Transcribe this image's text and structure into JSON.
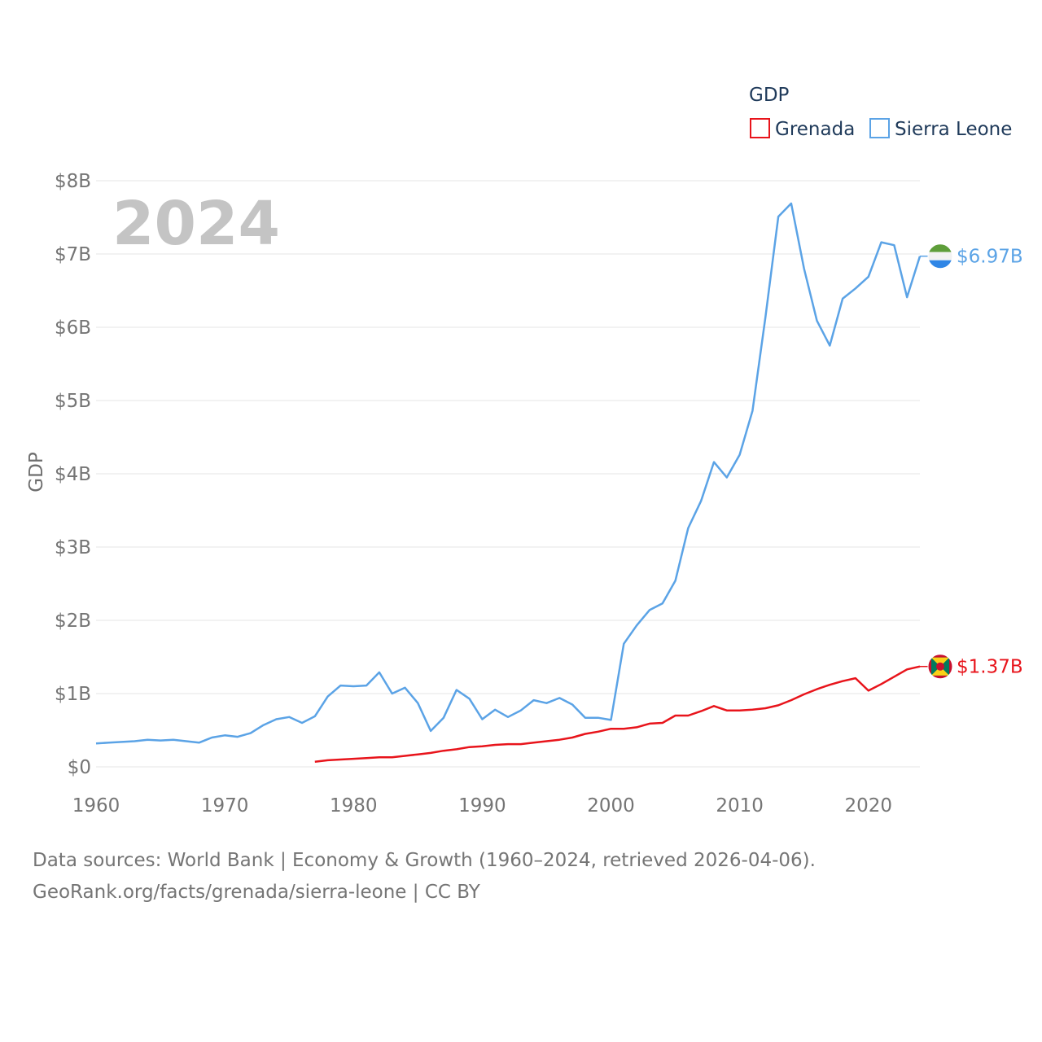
{
  "chart_data": {
    "type": "line",
    "year_label": "2024",
    "ylabel": "GDP",
    "xlim": [
      1960,
      2024
    ],
    "ylim": [
      0,
      8
    ],
    "x_ticks": [
      1960,
      1970,
      1980,
      1990,
      2000,
      2010,
      2020
    ],
    "x_tick_labels": [
      "1960",
      "1970",
      "1980",
      "1990",
      "2000",
      "2010",
      "2020"
    ],
    "y_ticks": [
      0,
      1,
      2,
      3,
      4,
      5,
      6,
      7,
      8
    ],
    "y_tick_labels": [
      "$0",
      "$1B",
      "$2B",
      "$3B",
      "$4B",
      "$5B",
      "$6B",
      "$7B",
      "$8B"
    ],
    "legend": {
      "title": "GDP",
      "placement": "top-right"
    },
    "grid": true,
    "series": [
      {
        "name": "Grenada",
        "color": "#e8141b",
        "end_label": "$1.37B",
        "flag": "grenada-flag",
        "x": [
          1977,
          1978,
          1979,
          1980,
          1981,
          1982,
          1983,
          1984,
          1985,
          1986,
          1987,
          1988,
          1989,
          1990,
          1991,
          1992,
          1993,
          1994,
          1995,
          1996,
          1997,
          1998,
          1999,
          2000,
          2001,
          2002,
          2003,
          2004,
          2005,
          2006,
          2007,
          2008,
          2009,
          2010,
          2011,
          2012,
          2013,
          2014,
          2015,
          2016,
          2017,
          2018,
          2019,
          2020,
          2021,
          2022,
          2023,
          2024
        ],
        "values": [
          0.07,
          0.09,
          0.1,
          0.11,
          0.12,
          0.13,
          0.13,
          0.15,
          0.17,
          0.19,
          0.22,
          0.24,
          0.27,
          0.28,
          0.3,
          0.31,
          0.31,
          0.33,
          0.35,
          0.37,
          0.4,
          0.45,
          0.48,
          0.52,
          0.52,
          0.54,
          0.59,
          0.6,
          0.7,
          0.7,
          0.76,
          0.83,
          0.77,
          0.77,
          0.78,
          0.8,
          0.84,
          0.91,
          0.99,
          1.06,
          1.12,
          1.17,
          1.21,
          1.04,
          1.13,
          1.23,
          1.33,
          1.37
        ]
      },
      {
        "name": "Sierra Leone",
        "color": "#5ba3e6",
        "end_label": "$6.97B",
        "flag": "sierra-leone-flag",
        "x": [
          1960,
          1961,
          1962,
          1963,
          1964,
          1965,
          1966,
          1967,
          1968,
          1969,
          1970,
          1971,
          1972,
          1973,
          1974,
          1975,
          1976,
          1977,
          1978,
          1979,
          1980,
          1981,
          1982,
          1983,
          1984,
          1985,
          1986,
          1987,
          1988,
          1989,
          1990,
          1991,
          1992,
          1993,
          1994,
          1995,
          1996,
          1997,
          1998,
          1999,
          2000,
          2001,
          2002,
          2003,
          2004,
          2005,
          2006,
          2007,
          2008,
          2009,
          2010,
          2011,
          2012,
          2013,
          2014,
          2015,
          2016,
          2017,
          2018,
          2019,
          2020,
          2021,
          2022,
          2023,
          2024
        ],
        "values": [
          0.32,
          0.33,
          0.34,
          0.35,
          0.37,
          0.36,
          0.37,
          0.35,
          0.33,
          0.4,
          0.43,
          0.41,
          0.46,
          0.57,
          0.65,
          0.68,
          0.6,
          0.69,
          0.96,
          1.11,
          1.1,
          1.11,
          1.29,
          1.0,
          1.08,
          0.87,
          0.49,
          0.67,
          1.05,
          0.93,
          0.65,
          0.78,
          0.68,
          0.77,
          0.91,
          0.87,
          0.94,
          0.85,
          0.67,
          0.67,
          0.64,
          1.68,
          1.93,
          2.14,
          2.23,
          2.54,
          3.26,
          3.63,
          4.16,
          3.95,
          4.26,
          4.86,
          6.14,
          7.51,
          7.69,
          6.8,
          6.09,
          5.75,
          6.39,
          6.53,
          6.69,
          7.16,
          7.12,
          6.41,
          6.97
        ]
      }
    ]
  },
  "footer": {
    "line1": "Data sources: World Bank | Economy & Growth (1960–2024, retrieved 2026-04-06).",
    "line2": "GeoRank.org/facts/grenada/sierra-leone | CC BY"
  }
}
